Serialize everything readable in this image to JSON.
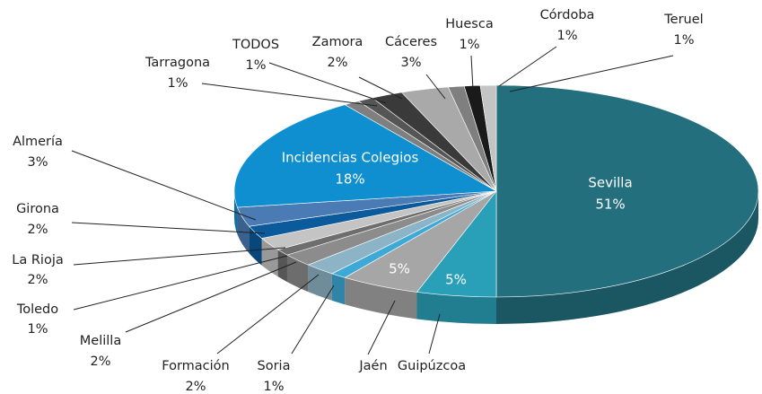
{
  "chart_data": {
    "type": "pie3d",
    "categories": [
      "Sevilla",
      "Guipúzcoa",
      "Jaén",
      "Soria",
      "Formación",
      "Melilla",
      "Toledo",
      "La Rioja",
      "Girona",
      "Almería",
      "Incidencias Colegios",
      "Tarragona",
      "TODOS",
      "Zamora",
      "Cáceres",
      "Huesca",
      "Córdoba",
      "Teruel"
    ],
    "values": [
      51,
      5,
      5,
      1,
      2,
      2,
      1,
      2,
      2,
      3,
      18,
      1,
      1,
      2,
      3,
      1,
      1,
      1
    ],
    "value_labels": [
      "51%",
      "5%",
      "5%",
      "1%",
      "2%",
      "2%",
      "1%",
      "2%",
      "2%",
      "3%",
      "18%",
      "1%",
      "1%",
      "2%",
      "3%",
      "1%",
      "1%",
      "1%"
    ],
    "colors": [
      "#236f7e",
      "#2aa0b8",
      "#a6a6a6",
      "#3ea9d6",
      "#8db4c6",
      "#8c8c8c",
      "#6e6e6e",
      "#c4c4c4",
      "#0b5a9c",
      "#4a7bb5",
      "#0f8fd0",
      "#7f7f7f",
      "#555555",
      "#3a3a3a",
      "#a9a9a9",
      "#7f7f7f",
      "#1a1a1a",
      "#c4c4c4"
    ]
  }
}
